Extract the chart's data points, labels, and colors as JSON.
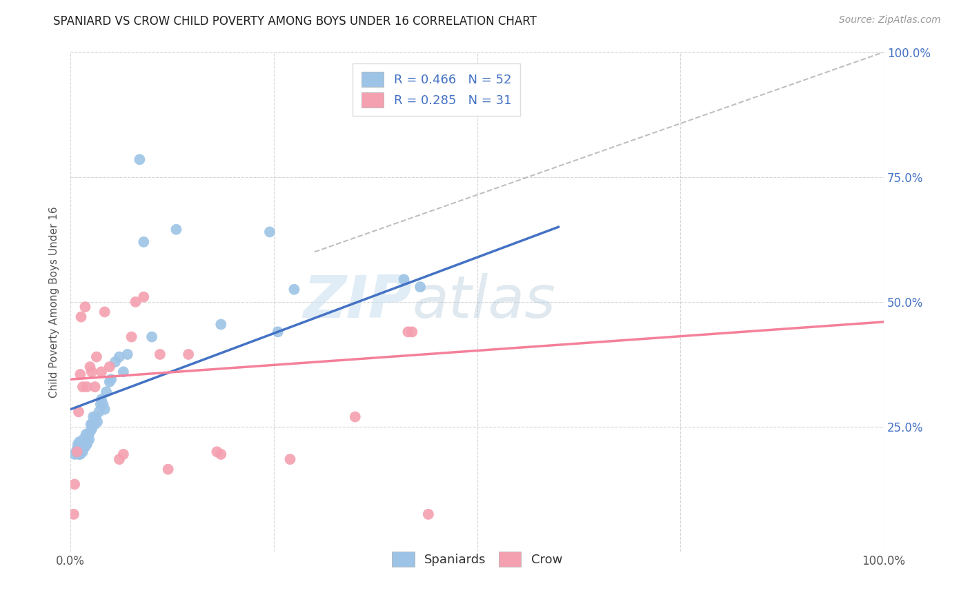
{
  "title": "SPANIARD VS CROW CHILD POVERTY AMONG BOYS UNDER 16 CORRELATION CHART",
  "source": "Source: ZipAtlas.com",
  "ylabel": "Child Poverty Among Boys Under 16",
  "xlim": [
    0,
    1
  ],
  "ylim": [
    0,
    1
  ],
  "xtick_labels": [
    "0.0%",
    "",
    "",
    "",
    "100.0%"
  ],
  "xtick_positions": [
    0,
    0.25,
    0.5,
    0.75,
    1.0
  ],
  "ytick_labels_right": [
    "100.0%",
    "75.0%",
    "50.0%",
    "25.0%"
  ],
  "ytick_positions_right": [
    1.0,
    0.75,
    0.5,
    0.25
  ],
  "watermark_zip": "ZIP",
  "watermark_atlas": "atlas",
  "blue_color": "#4472c4",
  "pink_color": "#f48099",
  "blue_scatter_color": "#9dc3e6",
  "pink_scatter_color": "#f4a0b0",
  "spaniards_x": [
    0.005,
    0.007,
    0.008,
    0.009,
    0.01,
    0.01,
    0.011,
    0.012,
    0.013,
    0.014,
    0.015,
    0.015,
    0.016,
    0.017,
    0.018,
    0.018,
    0.019,
    0.02,
    0.02,
    0.021,
    0.022,
    0.023,
    0.024,
    0.025,
    0.026,
    0.027,
    0.028,
    0.03,
    0.031,
    0.033,
    0.035,
    0.037,
    0.038,
    0.04,
    0.042,
    0.044,
    0.048,
    0.05,
    0.055,
    0.06,
    0.065,
    0.07,
    0.085,
    0.09,
    0.1,
    0.13,
    0.185,
    0.245,
    0.255,
    0.275,
    0.41,
    0.43
  ],
  "spaniards_y": [
    0.195,
    0.2,
    0.205,
    0.215,
    0.195,
    0.205,
    0.22,
    0.195,
    0.215,
    0.21,
    0.2,
    0.215,
    0.225,
    0.22,
    0.21,
    0.225,
    0.235,
    0.215,
    0.225,
    0.22,
    0.235,
    0.225,
    0.24,
    0.255,
    0.245,
    0.255,
    0.27,
    0.255,
    0.27,
    0.26,
    0.28,
    0.295,
    0.305,
    0.295,
    0.285,
    0.32,
    0.34,
    0.345,
    0.38,
    0.39,
    0.36,
    0.395,
    0.785,
    0.62,
    0.43,
    0.645,
    0.455,
    0.64,
    0.44,
    0.525,
    0.545,
    0.53
  ],
  "crow_x": [
    0.004,
    0.005,
    0.008,
    0.01,
    0.012,
    0.013,
    0.015,
    0.018,
    0.02,
    0.024,
    0.026,
    0.03,
    0.032,
    0.038,
    0.042,
    0.048,
    0.06,
    0.065,
    0.075,
    0.08,
    0.09,
    0.11,
    0.12,
    0.145,
    0.18,
    0.185,
    0.27,
    0.35,
    0.415,
    0.42,
    0.44
  ],
  "crow_y": [
    0.075,
    0.135,
    0.2,
    0.28,
    0.355,
    0.47,
    0.33,
    0.49,
    0.33,
    0.37,
    0.36,
    0.33,
    0.39,
    0.36,
    0.48,
    0.37,
    0.185,
    0.195,
    0.43,
    0.5,
    0.51,
    0.395,
    0.165,
    0.395,
    0.2,
    0.195,
    0.185,
    0.27,
    0.44,
    0.44,
    0.075
  ],
  "blue_line_x": [
    0.0,
    0.6
  ],
  "blue_line_y": [
    0.285,
    0.65
  ],
  "pink_line_x": [
    0.0,
    1.0
  ],
  "pink_line_y": [
    0.345,
    0.46
  ],
  "dashed_line_x": [
    0.3,
    1.0
  ],
  "dashed_line_y": [
    0.6,
    1.0
  ]
}
